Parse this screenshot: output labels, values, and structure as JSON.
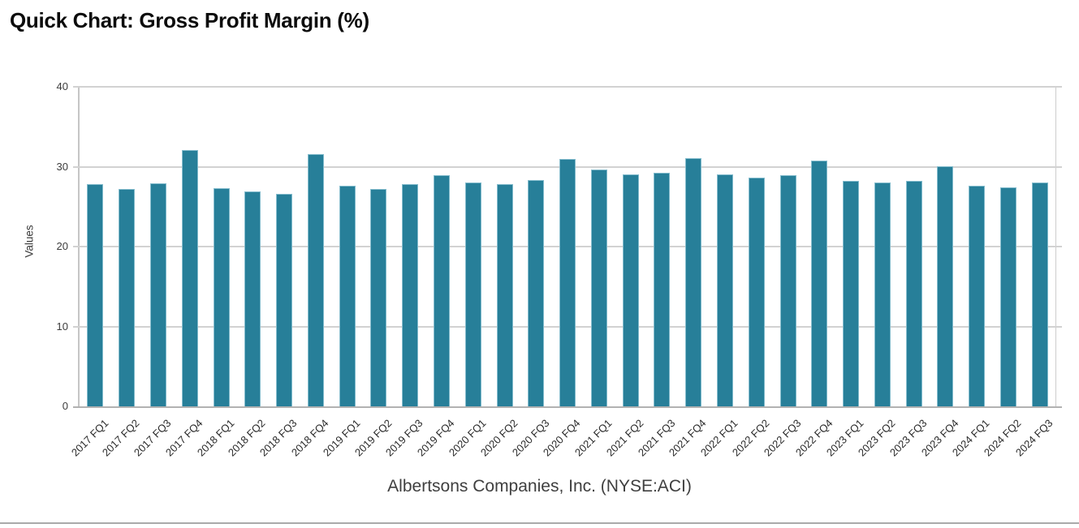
{
  "page": {
    "title": "Quick Chart: Gross Profit Margin (%)",
    "caption": "Albertsons Companies, Inc. (NYSE:ACI)"
  },
  "chart_data": {
    "type": "bar",
    "title": "Quick Chart: Gross Profit Margin (%)",
    "xlabel": "Albertsons Companies, Inc. (NYSE:ACI)",
    "ylabel": "Values",
    "ylim": [
      0,
      40
    ],
    "yticks": [
      0,
      10,
      20,
      30,
      40
    ],
    "grid": true,
    "legend_position": "none",
    "bar_color": "#277f99",
    "bar_edge_color": "#84bccd",
    "categories": [
      "2017 FQ1",
      "2017 FQ2",
      "2017 FQ3",
      "2017 FQ4",
      "2018 FQ1",
      "2018 FQ2",
      "2018 FQ3",
      "2018 FQ4",
      "2019 FQ1",
      "2019 FQ2",
      "2019 FQ3",
      "2019 FQ4",
      "2020 FQ1",
      "2020 FQ2",
      "2020 FQ3",
      "2020 FQ4",
      "2021 FQ1",
      "2021 FQ2",
      "2021 FQ3",
      "2021 FQ4",
      "2022 FQ1",
      "2022 FQ2",
      "2022 FQ3",
      "2022 FQ4",
      "2023 FQ1",
      "2023 FQ2",
      "2023 FQ3",
      "2023 FQ4",
      "2024 FQ1",
      "2024 FQ2",
      "2024 FQ3"
    ],
    "values": [
      27.8,
      27.2,
      27.9,
      32.1,
      27.3,
      26.9,
      26.6,
      31.6,
      27.6,
      27.2,
      27.8,
      28.9,
      28.0,
      27.8,
      28.3,
      31.0,
      29.6,
      29.0,
      29.2,
      31.1,
      29.0,
      28.6,
      28.9,
      30.8,
      28.2,
      28.0,
      28.2,
      30.1,
      27.6,
      27.4,
      28.0
    ]
  }
}
